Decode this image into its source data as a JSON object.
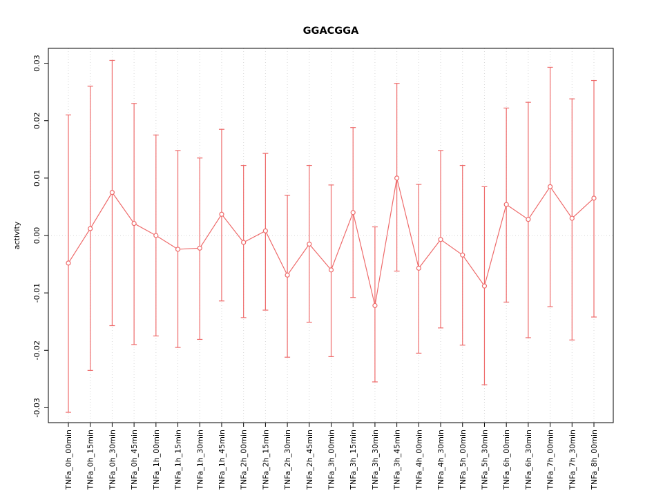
{
  "chart_data": {
    "type": "line",
    "title": "GGACGGA",
    "xlabel": "",
    "ylabel": "activity",
    "ylim": [
      -0.0326,
      0.0326
    ],
    "yticks": [
      -0.03,
      -0.02,
      -0.01,
      0.0,
      0.01,
      0.02,
      0.03
    ],
    "grid": "dotted light-gray vertical line at each category; dotted light-gray horizontal line at y=0",
    "legend": "none",
    "series_color": "#ee6a6a",
    "grid_color": "#d6d6d6",
    "marker": "open-circle",
    "categories": [
      "TNFa_0h_00min",
      "TNFa_0h_15min",
      "TNFa_0h_30min",
      "TNFa_0h_45min",
      "TNFa_1h_00min",
      "TNFa_1h_15min",
      "TNFa_1h_30min",
      "TNFa_1h_45min",
      "TNFa_2h_00min",
      "TNFa_2h_15min",
      "TNFa_2h_30min",
      "TNFa_2h_45min",
      "TNFa_3h_00min",
      "TNFa_3h_15min",
      "TNFa_3h_30min",
      "TNFa_3h_45min",
      "TNFa_4h_00min",
      "TNFa_4h_30min",
      "TNFa_5h_00min",
      "TNFa_5h_30min",
      "TNFa_6h_00min",
      "TNFa_6h_30min",
      "TNFa_7h_00min",
      "TNFa_7h_30min",
      "TNFa_8h_00min"
    ],
    "values": [
      -0.0048,
      0.0012,
      0.0075,
      0.0021,
      0.0,
      -0.0024,
      -0.0022,
      0.0037,
      -0.0012,
      0.0008,
      -0.0069,
      -0.0015,
      -0.006,
      0.004,
      -0.0122,
      0.01,
      -0.0057,
      -0.0007,
      -0.0034,
      -0.0088,
      0.0054,
      0.0028,
      0.0085,
      0.003,
      0.0065
    ],
    "error_high": [
      0.021,
      0.026,
      0.0305,
      0.023,
      0.0175,
      0.0148,
      0.0135,
      0.0185,
      0.0122,
      0.0143,
      0.007,
      0.0122,
      0.0088,
      0.0188,
      0.0015,
      0.0265,
      0.0089,
      0.0148,
      0.0122,
      0.0085,
      0.0222,
      0.0232,
      0.0293,
      0.0238,
      0.027
    ],
    "error_low": [
      -0.0308,
      -0.0235,
      -0.0157,
      -0.019,
      -0.0175,
      -0.0195,
      -0.0181,
      -0.0114,
      -0.0143,
      -0.013,
      -0.0212,
      -0.0151,
      -0.0211,
      -0.0108,
      -0.0255,
      -0.0062,
      -0.0205,
      -0.0161,
      -0.0191,
      -0.026,
      -0.0116,
      -0.0178,
      -0.0124,
      -0.0182,
      -0.0142
    ]
  }
}
